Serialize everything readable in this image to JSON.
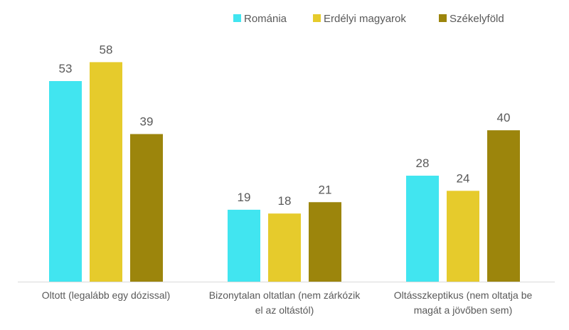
{
  "chart_data": {
    "type": "bar",
    "title": "",
    "xlabel": "",
    "ylabel": "",
    "ylim": [
      0,
      60
    ],
    "grid": false,
    "legend_position": "top-right",
    "categories": [
      [
        "Oltott (legalább egy dózissal)"
      ],
      [
        "Bizonytalan oltatlan (nem zárkózik",
        "el az oltástól)"
      ],
      [
        "Oltásszkeptikus (nem oltatja be",
        "magát a jövőben sem)"
      ]
    ],
    "series": [
      {
        "name": "Románia",
        "color": "#41E5F0",
        "values": [
          53,
          19,
          28
        ]
      },
      {
        "name": "Erdélyi magyarok",
        "color": "#E6CB2C",
        "values": [
          58,
          18,
          24
        ]
      },
      {
        "name": "Székelyföld",
        "color": "#9C850C",
        "values": [
          39,
          21,
          40
        ]
      }
    ]
  }
}
